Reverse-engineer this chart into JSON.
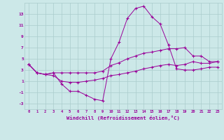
{
  "xlabel": "Windchill (Refroidissement éolien,°C)",
  "bg_color": "#cce8e8",
  "grid_color": "#aacccc",
  "line_color": "#990099",
  "hours": [
    0,
    1,
    2,
    3,
    4,
    5,
    6,
    7,
    8,
    9,
    10,
    11,
    12,
    13,
    14,
    15,
    16,
    17,
    18,
    19,
    20,
    21,
    22,
    23
  ],
  "line_spike": [
    4.0,
    2.5,
    2.2,
    2.5,
    0.5,
    -0.8,
    -0.8,
    -1.5,
    -2.2,
    -2.5,
    5.0,
    8.0,
    12.2,
    14.0,
    14.4,
    12.5,
    11.2,
    7.5,
    3.2,
    3.0,
    3.0,
    3.2,
    3.5,
    3.5
  ],
  "line_upper": [
    4.0,
    2.5,
    2.2,
    2.5,
    2.5,
    2.5,
    2.5,
    2.5,
    2.5,
    2.8,
    3.8,
    4.3,
    5.0,
    5.5,
    6.0,
    6.2,
    6.5,
    6.8,
    6.8,
    7.0,
    5.5,
    5.5,
    4.5,
    4.5
  ],
  "line_lower": [
    4.0,
    2.5,
    2.2,
    2.0,
    1.0,
    0.8,
    0.8,
    1.0,
    1.2,
    1.5,
    2.0,
    2.2,
    2.5,
    2.8,
    3.2,
    3.5,
    3.8,
    4.0,
    3.8,
    4.0,
    4.5,
    4.2,
    4.2,
    4.5
  ],
  "ylim": [
    -4,
    15
  ],
  "yticks": [
    -3,
    -1,
    1,
    3,
    5,
    7,
    9,
    11,
    13
  ],
  "xlim": [
    -0.5,
    23.5
  ]
}
